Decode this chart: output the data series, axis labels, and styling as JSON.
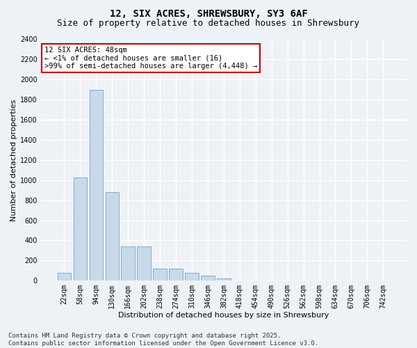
{
  "title": "12, SIX ACRES, SHREWSBURY, SY3 6AF",
  "subtitle": "Size of property relative to detached houses in Shrewsbury",
  "xlabel": "Distribution of detached houses by size in Shrewsbury",
  "ylabel": "Number of detached properties",
  "categories": [
    "22sqm",
    "58sqm",
    "94sqm",
    "130sqm",
    "166sqm",
    "202sqm",
    "238sqm",
    "274sqm",
    "310sqm",
    "346sqm",
    "382sqm",
    "418sqm",
    "454sqm",
    "490sqm",
    "526sqm",
    "562sqm",
    "598sqm",
    "634sqm",
    "670sqm",
    "706sqm",
    "742sqm"
  ],
  "values": [
    75,
    1025,
    1900,
    880,
    340,
    340,
    120,
    120,
    75,
    50,
    25,
    0,
    0,
    0,
    0,
    0,
    0,
    0,
    0,
    0,
    0
  ],
  "bar_color": "#c9d9ea",
  "bar_edge_color": "#7bafd4",
  "annotation_text": "12 SIX ACRES: 48sqm\n← <1% of detached houses are smaller (16)\n>99% of semi-detached houses are larger (4,448) →",
  "annotation_box_color": "#ffffff",
  "annotation_box_edge": "#cc0000",
  "ylim": [
    0,
    2400
  ],
  "yticks": [
    0,
    200,
    400,
    600,
    800,
    1000,
    1200,
    1400,
    1600,
    1800,
    2000,
    2200,
    2400
  ],
  "background_color": "#eef2f7",
  "grid_color": "#ffffff",
  "footer": "Contains HM Land Registry data © Crown copyright and database right 2025.\nContains public sector information licensed under the Open Government Licence v3.0.",
  "title_fontsize": 10,
  "subtitle_fontsize": 9,
  "axis_label_fontsize": 8,
  "tick_fontsize": 7,
  "annotation_fontsize": 7.5,
  "footer_fontsize": 6.5
}
